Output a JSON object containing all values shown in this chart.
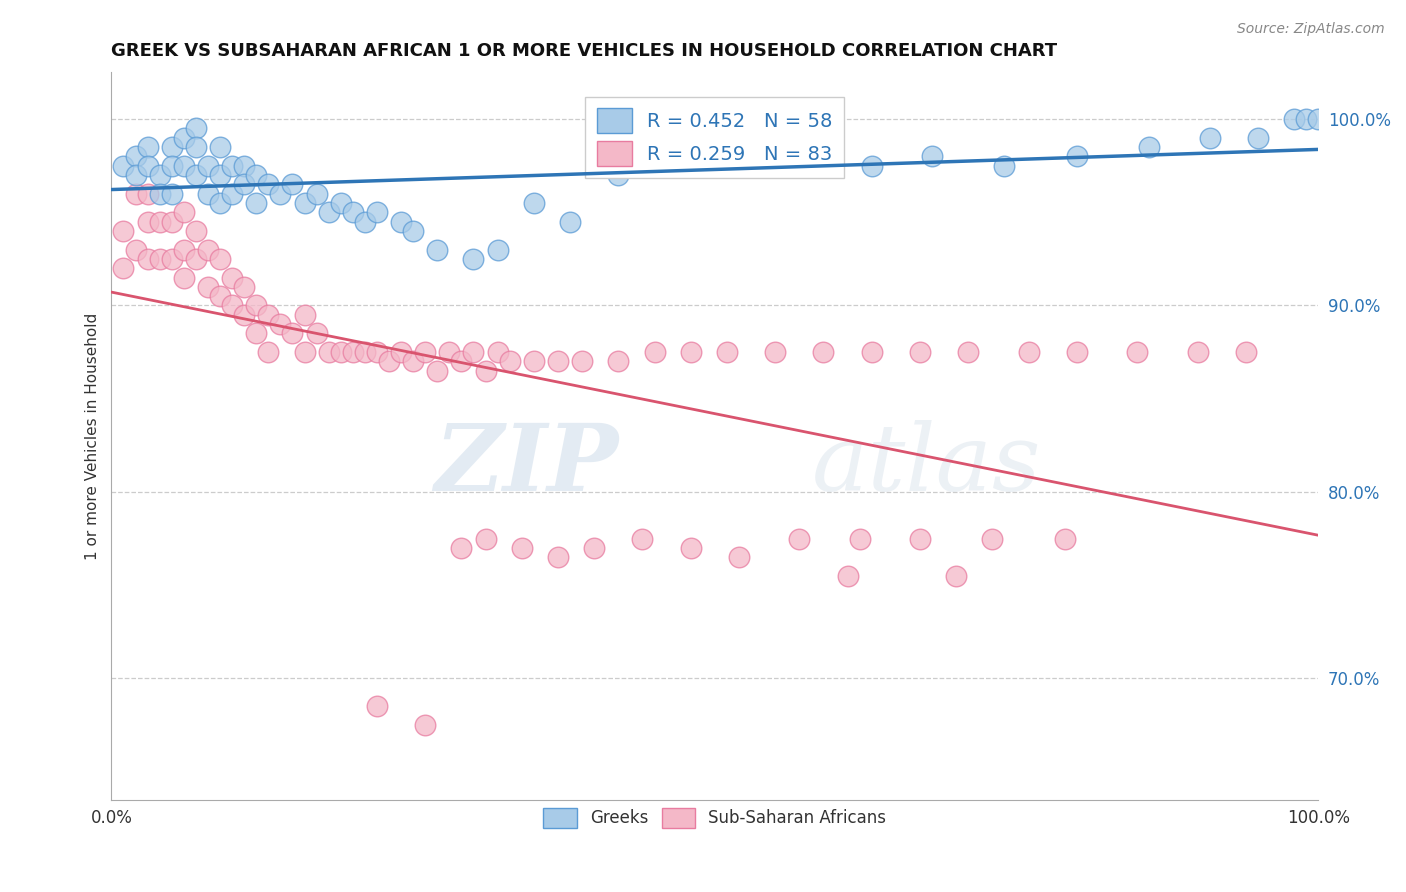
{
  "title": "GREEK VS SUBSAHARAN AFRICAN 1 OR MORE VEHICLES IN HOUSEHOLD CORRELATION CHART",
  "source": "Source: ZipAtlas.com",
  "ylabel": "1 or more Vehicles in Household",
  "xlim": [
    0.0,
    1.0
  ],
  "ylim": [
    0.635,
    1.025
  ],
  "yticks": [
    0.7,
    0.8,
    0.9,
    1.0
  ],
  "ytick_labels": [
    "70.0%",
    "80.0%",
    "90.0%",
    "100.0%"
  ],
  "xticks": [
    0.0,
    1.0
  ],
  "xtick_labels": [
    "0.0%",
    "100.0%"
  ],
  "greek_r": 0.452,
  "greek_n": 58,
  "subsaharan_r": 0.259,
  "subsaharan_n": 83,
  "greek_color": "#A8CBE8",
  "greek_edge_color": "#5B9BD5",
  "greek_line_color": "#2E75B6",
  "subsaharan_color": "#F4B8C8",
  "subsaharan_edge_color": "#E87CA0",
  "subsaharan_line_color": "#D9546E",
  "watermark_zip": "ZIP",
  "watermark_atlas": "atlas",
  "background_color": "#ffffff",
  "grid_color": "#cccccc",
  "greek_x": [
    0.01,
    0.02,
    0.02,
    0.03,
    0.03,
    0.04,
    0.04,
    0.05,
    0.05,
    0.05,
    0.06,
    0.06,
    0.07,
    0.07,
    0.07,
    0.08,
    0.08,
    0.09,
    0.09,
    0.09,
    0.1,
    0.1,
    0.11,
    0.11,
    0.12,
    0.12,
    0.13,
    0.14,
    0.15,
    0.16,
    0.17,
    0.18,
    0.19,
    0.2,
    0.21,
    0.22,
    0.24,
    0.25,
    0.27,
    0.3,
    0.32,
    0.35,
    0.38,
    0.42,
    0.46,
    0.5,
    0.54,
    0.58,
    0.63,
    0.68,
    0.74,
    0.8,
    0.86,
    0.91,
    0.95,
    0.98,
    0.99,
    1.0
  ],
  "greek_y": [
    0.975,
    0.98,
    0.97,
    0.985,
    0.975,
    0.97,
    0.96,
    0.985,
    0.975,
    0.96,
    0.99,
    0.975,
    0.995,
    0.985,
    0.97,
    0.975,
    0.96,
    0.985,
    0.97,
    0.955,
    0.975,
    0.96,
    0.975,
    0.965,
    0.97,
    0.955,
    0.965,
    0.96,
    0.965,
    0.955,
    0.96,
    0.95,
    0.955,
    0.95,
    0.945,
    0.95,
    0.945,
    0.94,
    0.93,
    0.925,
    0.93,
    0.955,
    0.945,
    0.97,
    0.975,
    0.975,
    0.975,
    0.975,
    0.975,
    0.98,
    0.975,
    0.98,
    0.985,
    0.99,
    0.99,
    1.0,
    1.0,
    1.0
  ],
  "subsaharan_x": [
    0.01,
    0.01,
    0.02,
    0.02,
    0.03,
    0.03,
    0.03,
    0.04,
    0.04,
    0.05,
    0.05,
    0.06,
    0.06,
    0.06,
    0.07,
    0.07,
    0.08,
    0.08,
    0.09,
    0.09,
    0.1,
    0.1,
    0.11,
    0.11,
    0.12,
    0.12,
    0.13,
    0.13,
    0.14,
    0.15,
    0.16,
    0.16,
    0.17,
    0.18,
    0.19,
    0.2,
    0.21,
    0.22,
    0.23,
    0.24,
    0.25,
    0.26,
    0.27,
    0.28,
    0.29,
    0.3,
    0.31,
    0.32,
    0.33,
    0.35,
    0.37,
    0.39,
    0.42,
    0.45,
    0.48,
    0.51,
    0.55,
    0.59,
    0.63,
    0.67,
    0.71,
    0.76,
    0.8,
    0.85,
    0.9,
    0.94,
    0.29,
    0.31,
    0.34,
    0.37,
    0.4,
    0.44,
    0.48,
    0.52,
    0.57,
    0.62,
    0.67,
    0.73,
    0.79,
    0.61,
    0.7,
    0.22,
    0.26
  ],
  "subsaharan_y": [
    0.94,
    0.92,
    0.96,
    0.93,
    0.96,
    0.945,
    0.925,
    0.945,
    0.925,
    0.945,
    0.925,
    0.95,
    0.93,
    0.915,
    0.94,
    0.925,
    0.93,
    0.91,
    0.925,
    0.905,
    0.915,
    0.9,
    0.91,
    0.895,
    0.9,
    0.885,
    0.895,
    0.875,
    0.89,
    0.885,
    0.895,
    0.875,
    0.885,
    0.875,
    0.875,
    0.875,
    0.875,
    0.875,
    0.87,
    0.875,
    0.87,
    0.875,
    0.865,
    0.875,
    0.87,
    0.875,
    0.865,
    0.875,
    0.87,
    0.87,
    0.87,
    0.87,
    0.87,
    0.875,
    0.875,
    0.875,
    0.875,
    0.875,
    0.875,
    0.875,
    0.875,
    0.875,
    0.875,
    0.875,
    0.875,
    0.875,
    0.77,
    0.775,
    0.77,
    0.765,
    0.77,
    0.775,
    0.77,
    0.765,
    0.775,
    0.775,
    0.775,
    0.775,
    0.775,
    0.755,
    0.755,
    0.685,
    0.675
  ]
}
